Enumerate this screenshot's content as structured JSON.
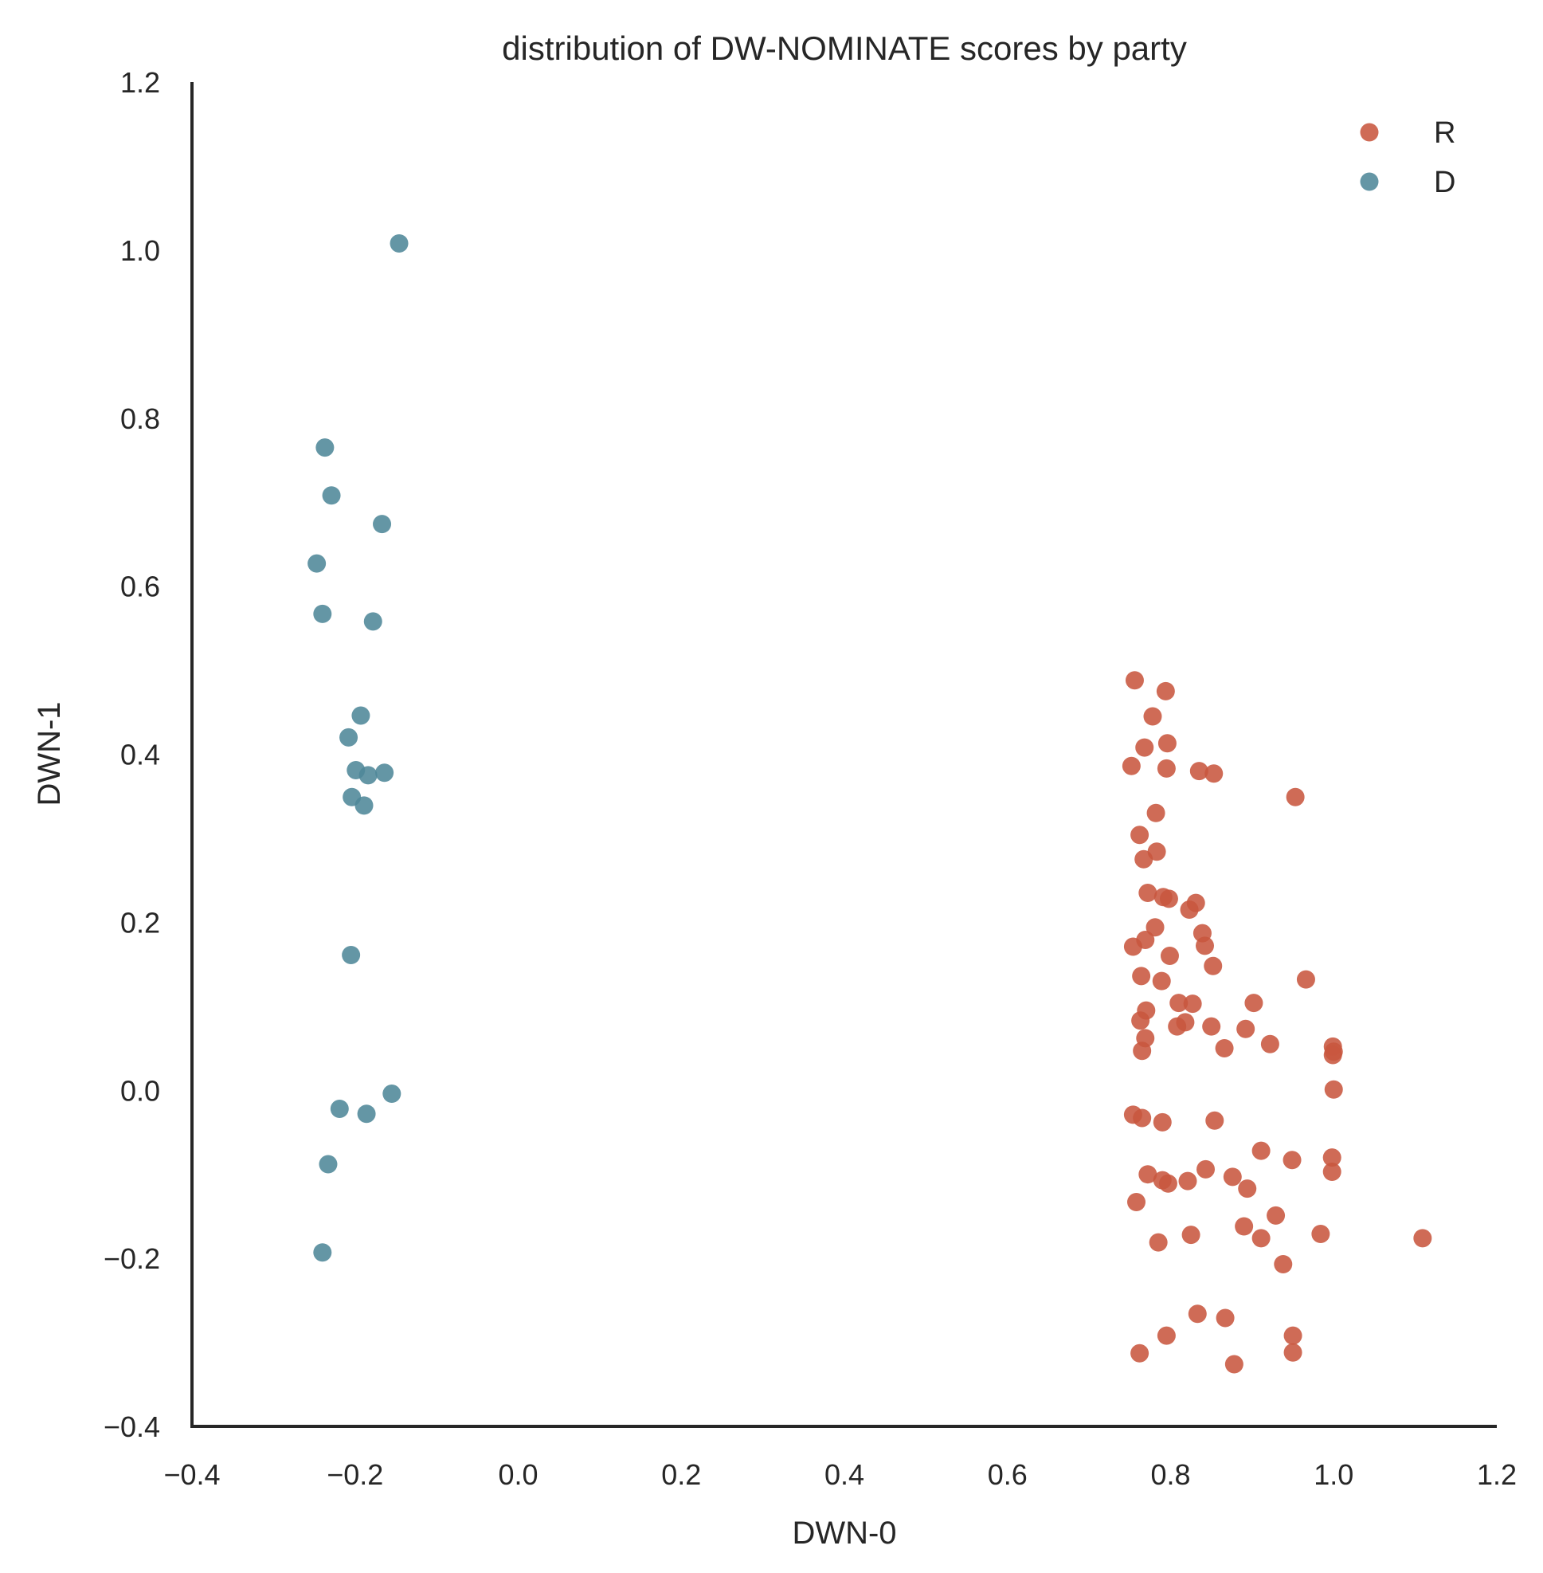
{
  "chart_data": {
    "type": "scatter",
    "title": "distribution of DW-NOMINATE scores by party",
    "xlabel": "DWN-0",
    "ylabel": "DWN-1",
    "xlim": [
      -0.4,
      1.2
    ],
    "ylim": [
      -0.4,
      1.2
    ],
    "xticks": [
      -0.4,
      -0.2,
      0.0,
      0.2,
      0.4,
      0.6,
      0.8,
      1.0,
      1.2
    ],
    "yticks": [
      -0.4,
      -0.2,
      0.0,
      0.2,
      0.4,
      0.6,
      0.8,
      1.0,
      1.2
    ],
    "xtick_labels": [
      "−0.4",
      "−0.2",
      "0.0",
      "0.2",
      "0.4",
      "0.6",
      "0.8",
      "1.0",
      "1.2"
    ],
    "ytick_labels": [
      "−0.4",
      "−0.2",
      "0.0",
      "0.2",
      "0.4",
      "0.6",
      "0.8",
      "1.0",
      "1.2"
    ],
    "grid": false,
    "legend_position": "top-right",
    "series": [
      {
        "name": "R",
        "color": "#c8573f",
        "points": [
          [
            0.756,
            0.488
          ],
          [
            0.794,
            0.475
          ],
          [
            0.778,
            0.445
          ],
          [
            0.796,
            0.413
          ],
          [
            0.768,
            0.408
          ],
          [
            0.752,
            0.386
          ],
          [
            0.795,
            0.383
          ],
          [
            0.835,
            0.38
          ],
          [
            0.853,
            0.377
          ],
          [
            0.953,
            0.349
          ],
          [
            0.782,
            0.33
          ],
          [
            0.762,
            0.304
          ],
          [
            0.767,
            0.275
          ],
          [
            0.783,
            0.284
          ],
          [
            0.772,
            0.235
          ],
          [
            0.791,
            0.23
          ],
          [
            0.798,
            0.228
          ],
          [
            0.831,
            0.223
          ],
          [
            0.823,
            0.215
          ],
          [
            0.781,
            0.194
          ],
          [
            0.839,
            0.187
          ],
          [
            0.842,
            0.172
          ],
          [
            0.769,
            0.179
          ],
          [
            0.754,
            0.171
          ],
          [
            0.799,
            0.16
          ],
          [
            0.852,
            0.148
          ],
          [
            0.764,
            0.136
          ],
          [
            0.789,
            0.13
          ],
          [
            0.966,
            0.132
          ],
          [
            0.902,
            0.104
          ],
          [
            0.81,
            0.104
          ],
          [
            0.827,
            0.103
          ],
          [
            0.77,
            0.095
          ],
          [
            0.763,
            0.083
          ],
          [
            0.818,
            0.081
          ],
          [
            0.808,
            0.076
          ],
          [
            0.85,
            0.076
          ],
          [
            0.892,
            0.073
          ],
          [
            0.769,
            0.062
          ],
          [
            0.922,
            0.055
          ],
          [
            0.866,
            0.05
          ],
          [
            0.765,
            0.047
          ],
          [
            0.999,
            0.052
          ],
          [
            1.0,
            0.046
          ],
          [
            0.999,
            0.042
          ],
          [
            1.0,
            0.001
          ],
          [
            0.754,
            -0.029
          ],
          [
            0.765,
            -0.033
          ],
          [
            0.79,
            -0.038
          ],
          [
            0.854,
            -0.036
          ],
          [
            0.911,
            -0.072
          ],
          [
            0.949,
            -0.083
          ],
          [
            0.998,
            -0.08
          ],
          [
            0.772,
            -0.1
          ],
          [
            0.79,
            -0.107
          ],
          [
            0.797,
            -0.111
          ],
          [
            0.821,
            -0.108
          ],
          [
            0.843,
            -0.094
          ],
          [
            0.876,
            -0.103
          ],
          [
            0.894,
            -0.117
          ],
          [
            0.998,
            -0.097
          ],
          [
            0.758,
            -0.133
          ],
          [
            0.929,
            -0.149
          ],
          [
            0.89,
            -0.162
          ],
          [
            0.911,
            -0.176
          ],
          [
            0.984,
            -0.171
          ],
          [
            1.109,
            -0.176
          ],
          [
            0.825,
            -0.172
          ],
          [
            0.785,
            -0.181
          ],
          [
            0.938,
            -0.207
          ],
          [
            0.833,
            -0.266
          ],
          [
            0.867,
            -0.271
          ],
          [
            0.795,
            -0.292
          ],
          [
            0.95,
            -0.292
          ],
          [
            0.762,
            -0.313
          ],
          [
            0.95,
            -0.312
          ],
          [
            0.878,
            -0.326
          ]
        ]
      },
      {
        "name": "D",
        "color": "#4f8799",
        "points": [
          [
            -0.146,
            1.008
          ],
          [
            -0.237,
            0.765
          ],
          [
            -0.229,
            0.708
          ],
          [
            -0.167,
            0.674
          ],
          [
            -0.247,
            0.627
          ],
          [
            -0.24,
            0.567
          ],
          [
            -0.178,
            0.558
          ],
          [
            -0.193,
            0.446
          ],
          [
            -0.208,
            0.42
          ],
          [
            -0.199,
            0.381
          ],
          [
            -0.184,
            0.375
          ],
          [
            -0.164,
            0.378
          ],
          [
            -0.204,
            0.349
          ],
          [
            -0.189,
            0.339
          ],
          [
            -0.205,
            0.161
          ],
          [
            -0.155,
            -0.004
          ],
          [
            -0.219,
            -0.022
          ],
          [
            -0.186,
            -0.028
          ],
          [
            -0.233,
            -0.088
          ],
          [
            -0.24,
            -0.193
          ]
        ]
      }
    ]
  }
}
